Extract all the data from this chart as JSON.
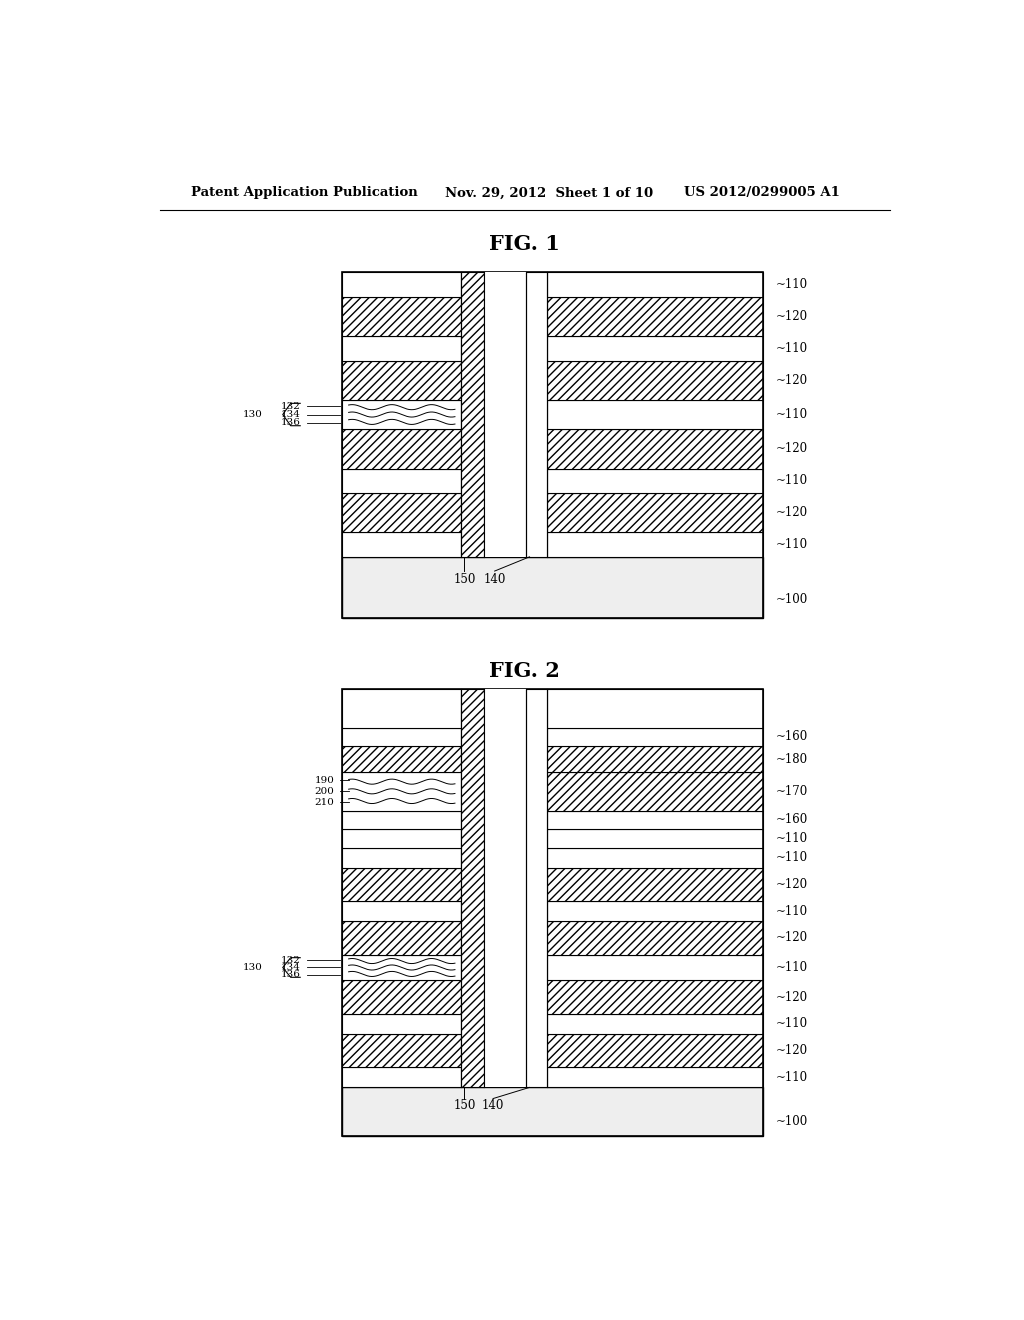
{
  "header_left": "Patent Application Publication",
  "header_mid": "Nov. 29, 2012  Sheet 1 of 10",
  "header_right": "US 2012/0299005 A1",
  "fig1_title": "FIG. 1",
  "fig2_title": "FIG. 2",
  "bg_color": "#ffffff",
  "line_color": "#000000"
}
